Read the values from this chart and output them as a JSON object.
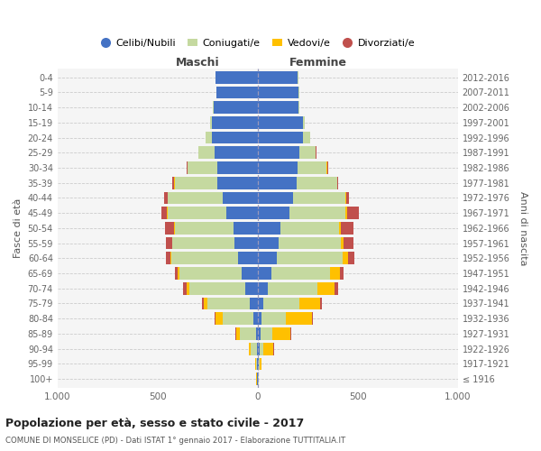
{
  "age_groups": [
    "100+",
    "95-99",
    "90-94",
    "85-89",
    "80-84",
    "75-79",
    "70-74",
    "65-69",
    "60-64",
    "55-59",
    "50-54",
    "45-49",
    "40-44",
    "35-39",
    "30-34",
    "25-29",
    "20-24",
    "15-19",
    "10-14",
    "5-9",
    "0-4"
  ],
  "birth_years": [
    "≤ 1916",
    "1917-1921",
    "1922-1926",
    "1927-1931",
    "1932-1936",
    "1937-1941",
    "1942-1946",
    "1947-1951",
    "1952-1956",
    "1957-1961",
    "1962-1966",
    "1967-1971",
    "1972-1976",
    "1977-1981",
    "1982-1986",
    "1987-1991",
    "1992-1996",
    "1997-2001",
    "2002-2006",
    "2007-2011",
    "2012-2016"
  ],
  "males_celibi": [
    2,
    3,
    5,
    8,
    20,
    40,
    60,
    80,
    100,
    115,
    120,
    155,
    175,
    200,
    200,
    215,
    230,
    230,
    220,
    205,
    210
  ],
  "males_coniugati": [
    3,
    5,
    30,
    80,
    155,
    210,
    280,
    310,
    330,
    310,
    295,
    295,
    275,
    215,
    150,
    80,
    30,
    8,
    5,
    3,
    2
  ],
  "males_vedovi": [
    1,
    3,
    10,
    20,
    35,
    20,
    15,
    10,
    5,
    3,
    2,
    2,
    1,
    1,
    1,
    0,
    0,
    0,
    0,
    0,
    0
  ],
  "males_divorziati": [
    0,
    0,
    1,
    2,
    5,
    10,
    20,
    15,
    25,
    30,
    45,
    30,
    15,
    10,
    5,
    3,
    2,
    1,
    0,
    0,
    0
  ],
  "females_nubili": [
    2,
    4,
    8,
    15,
    20,
    30,
    50,
    70,
    95,
    105,
    115,
    160,
    175,
    195,
    200,
    210,
    225,
    225,
    205,
    205,
    200
  ],
  "females_coniugate": [
    2,
    5,
    20,
    60,
    120,
    180,
    250,
    290,
    330,
    310,
    290,
    280,
    265,
    200,
    145,
    80,
    35,
    10,
    5,
    2,
    2
  ],
  "females_vedove": [
    3,
    10,
    50,
    90,
    130,
    100,
    85,
    50,
    25,
    15,
    10,
    5,
    3,
    2,
    1,
    1,
    0,
    0,
    0,
    0,
    0
  ],
  "females_divorziate": [
    0,
    1,
    2,
    3,
    5,
    10,
    15,
    20,
    35,
    50,
    65,
    60,
    15,
    5,
    5,
    3,
    2,
    1,
    0,
    0,
    0
  ],
  "color_celibi": "#4472C4",
  "color_coniugati": "#C5D9A0",
  "color_vedovi": "#FFC000",
  "color_divorziati": "#C0504D",
  "xlim": 1000,
  "title": "Popolazione per età, sesso e stato civile - 2017",
  "subtitle": "COMUNE DI MONSELICE (PD) - Dati ISTAT 1° gennaio 2017 - Elaborazione TUTTITALIA.IT",
  "legend_labels": [
    "Celibi/Nubili",
    "Coniugati/e",
    "Vedovi/e",
    "Divorziati/e"
  ],
  "label_maschi": "Maschi",
  "label_femmine": "Femmine",
  "label_fasce": "Fasce di età",
  "label_anni": "Anni di nascita",
  "bg_color": "#ffffff",
  "plot_bg": "#f5f5f5",
  "grid_color": "#cccccc"
}
